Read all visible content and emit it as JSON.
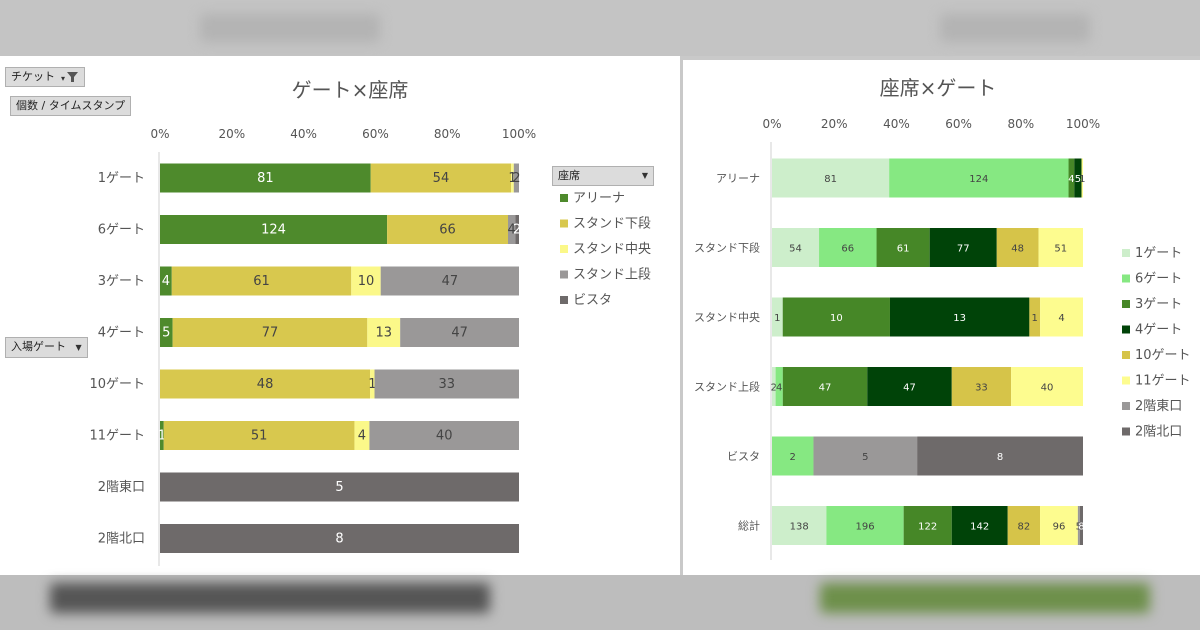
{
  "pivot": {
    "filter_label": "チケット",
    "values_label": "個数 / タイムスタンプ",
    "rows_label": "入場ゲート",
    "legend_field": "座席"
  },
  "chart_data": [
    {
      "type": "bar",
      "orientation": "horizontal",
      "stacked": "percent",
      "title": "ゲート×座席",
      "xlim": [
        0,
        100
      ],
      "xticks": [
        "0%",
        "20%",
        "40%",
        "60%",
        "80%",
        "100%"
      ],
      "legend_title": "座席",
      "legend_position": "right",
      "categories": [
        "1ゲート",
        "6ゲート",
        "3ゲート",
        "4ゲート",
        "10ゲート",
        "11ゲート",
        "2階東口",
        "2階北口"
      ],
      "series": [
        {
          "name": "アリーナ",
          "color": "#4e8a2c",
          "values": [
            81,
            124,
            4,
            5,
            0,
            1,
            0,
            0
          ]
        },
        {
          "name": "スタンド下段",
          "color": "#d8c84e",
          "values": [
            54,
            66,
            61,
            77,
            48,
            51,
            0,
            0
          ]
        },
        {
          "name": "スタンド中央",
          "color": "#fbf889",
          "values": [
            1,
            0,
            10,
            13,
            1,
            4,
            0,
            0
          ]
        },
        {
          "name": "スタンド上段",
          "color": "#9a9898",
          "values": [
            2,
            4,
            47,
            47,
            33,
            40,
            0,
            0
          ]
        },
        {
          "name": "ビスタ",
          "color": "#6e6a6a",
          "values": [
            0,
            2,
            0,
            0,
            0,
            0,
            5,
            8
          ]
        }
      ],
      "data_labels": [
        [
          "81",
          "54",
          "1",
          "2",
          ""
        ],
        [
          "124",
          "66",
          "",
          "4",
          "2"
        ],
        [
          "4",
          "61",
          "10",
          "47",
          ""
        ],
        [
          "5",
          "77",
          "13",
          "47",
          ""
        ],
        [
          "",
          "48",
          "1",
          "33",
          ""
        ],
        [
          "1",
          "51",
          "4",
          "40",
          ""
        ],
        [
          "",
          "",
          "",
          "",
          "5"
        ],
        [
          "",
          "",
          "",
          "",
          "8"
        ]
      ]
    },
    {
      "type": "bar",
      "orientation": "horizontal",
      "stacked": "percent",
      "title": "座席×ゲート",
      "xlim": [
        0,
        100
      ],
      "xticks": [
        "0%",
        "20%",
        "40%",
        "60%",
        "80%",
        "100%"
      ],
      "legend_position": "right",
      "categories": [
        "アリーナ",
        "スタンド下段",
        "スタンド中央",
        "スタンド上段",
        "ビスタ",
        "総計"
      ],
      "series": [
        {
          "name": "1ゲート",
          "color": "#cdeecb",
          "values": [
            81,
            54,
            1,
            2,
            0,
            138
          ]
        },
        {
          "name": "6ゲート",
          "color": "#86e882",
          "values": [
            124,
            66,
            0,
            4,
            2,
            196
          ]
        },
        {
          "name": "3ゲート",
          "color": "#468727",
          "values": [
            4,
            61,
            10,
            47,
            0,
            122
          ]
        },
        {
          "name": "4ゲート",
          "color": "#004308",
          "values": [
            5,
            77,
            13,
            47,
            0,
            142
          ]
        },
        {
          "name": "10ゲート",
          "color": "#d6c449",
          "values": [
            0,
            48,
            1,
            33,
            0,
            82
          ]
        },
        {
          "name": "11ゲート",
          "color": "#fdfc8f",
          "values": [
            1,
            51,
            4,
            40,
            0,
            96
          ]
        },
        {
          "name": "2階東口",
          "color": "#9a9898",
          "values": [
            0,
            0,
            0,
            0,
            5,
            5
          ]
        },
        {
          "name": "2階北口",
          "color": "#6e6a6a",
          "values": [
            0,
            0,
            0,
            0,
            8,
            8
          ]
        }
      ],
      "data_labels": [
        [
          "81",
          "124",
          "4",
          "5",
          "",
          "1",
          "",
          ""
        ],
        [
          "54",
          "66",
          "61",
          "77",
          "48",
          "51",
          "",
          ""
        ],
        [
          "1",
          "",
          "10",
          "13",
          "1",
          "4",
          "",
          ""
        ],
        [
          "2",
          "4",
          "47",
          "47",
          "33",
          "40",
          "",
          ""
        ],
        [
          "",
          "2",
          "",
          "",
          "",
          "",
          "5",
          "8"
        ],
        [
          "138",
          "196",
          "122",
          "142",
          "82",
          "96",
          "5",
          "8"
        ]
      ]
    }
  ]
}
